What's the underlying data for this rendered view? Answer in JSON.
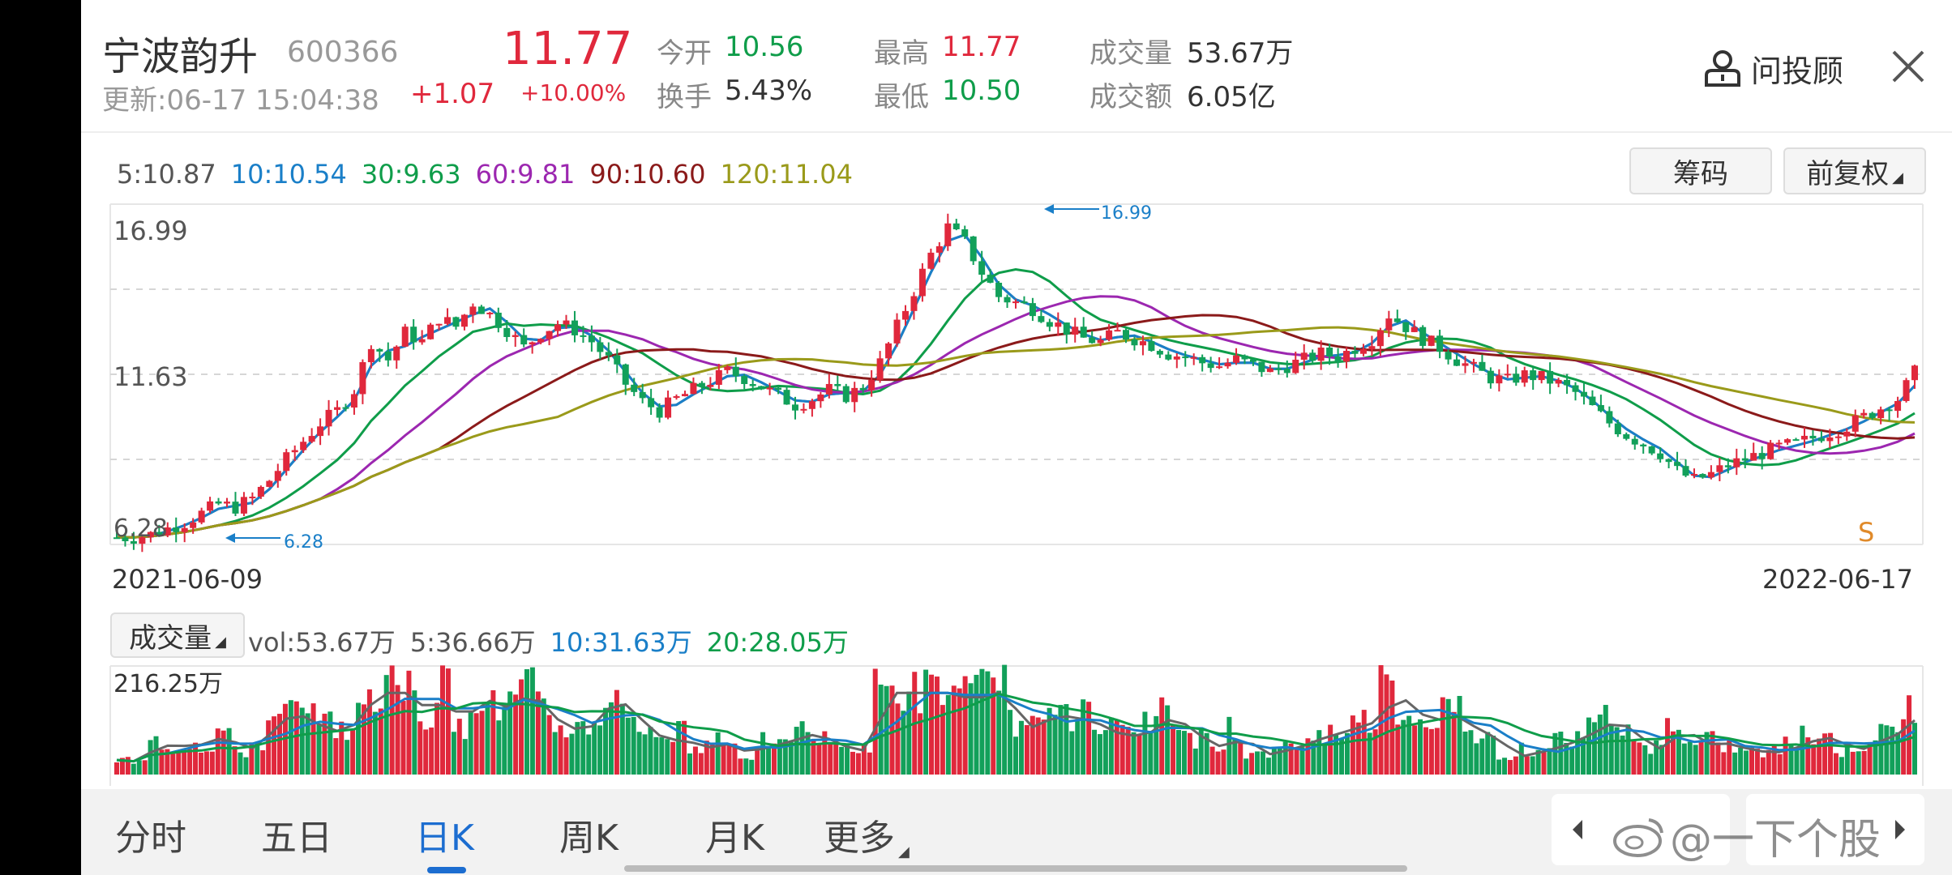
{
  "stock": {
    "name": "宁波韵升",
    "code": "600366",
    "update": "更新:06-17 15:04:38",
    "price": "11.77",
    "change": "+1.07",
    "change_pct": "+10.00%"
  },
  "quote": {
    "open_label": "今开",
    "open": "10.56",
    "turnover_label": "换手",
    "turnover": "5.43%",
    "high_label": "最高",
    "high": "11.77",
    "low_label": "最低",
    "low": "10.50",
    "volume_label": "成交量",
    "volume": "53.67万",
    "amount_label": "成交额",
    "amount": "6.05亿"
  },
  "advisor_label": "问投顾",
  "ma_legend": [
    {
      "text": "5:10.87",
      "color": "#555555"
    },
    {
      "text": "10:10.54",
      "color": "#1a7fc8"
    },
    {
      "text": "30:9.63",
      "color": "#0f9d4a"
    },
    {
      "text": "60:9.81",
      "color": "#9c27b0"
    },
    {
      "text": "90:10.60",
      "color": "#8b1a1a"
    },
    {
      "text": "120:11.04",
      "color": "#9a9a1a"
    }
  ],
  "buttons": {
    "chips": "筹码",
    "adjust": "前复权"
  },
  "kline": {
    "y_top": "16.99",
    "y_mid": "11.63",
    "y_bottom": "6.28",
    "max_marker": "16.99",
    "min_marker": "6.28",
    "signal": "S",
    "date_start": "2021-06-09",
    "date_end": "2022-06-17"
  },
  "volume_panel": {
    "selector": "成交量",
    "vol": "vol:53.67万",
    "ma5": "5:36.66万",
    "ma10": "10:31.63万",
    "ma20": "20:28.05万",
    "max_label": "216.25万"
  },
  "tabs": [
    "分时",
    "五日",
    "日K",
    "周K",
    "月K",
    "更多"
  ],
  "watermark": "@一下个股",
  "chart_data": {
    "type": "candlestick",
    "x_start": "2021-06-09",
    "x_end": "2022-06-17",
    "ylim": [
      6.28,
      16.99
    ],
    "close": [
      6.3,
      6.3,
      6.4,
      6.6,
      6.8,
      7.1,
      7.4,
      7.3,
      7.6,
      8.2,
      8.9,
      9.5,
      10.1,
      10.5,
      11.2,
      12.8,
      12.2,
      13.1,
      12.8,
      13.6,
      13.3,
      14.1,
      13.7,
      13.2,
      12.6,
      13.1,
      13.4,
      13.2,
      12.8,
      12.2,
      11.4,
      10.8,
      10.5,
      10.9,
      11.2,
      11.5,
      11.8,
      11.6,
      11.3,
      11.0,
      10.7,
      10.9,
      11.2,
      11.0,
      11.3,
      12.1,
      13.3,
      14.5,
      15.7,
      16.6,
      16.1,
      15.1,
      14.3,
      14.1,
      13.9,
      13.5,
      13.2,
      12.9,
      12.8,
      13.1,
      12.9,
      12.7,
      12.4,
      12.3,
      12.1,
      12.0,
      12.2,
      12.0,
      11.8,
      12.0,
      12.2,
      12.4,
      12.3,
      12.6,
      12.9,
      13.7,
      13.3,
      12.9,
      12.6,
      12.2,
      11.9,
      11.6,
      11.5,
      11.7,
      11.6,
      11.4,
      11.1,
      10.6,
      10.1,
      9.7,
      9.4,
      9.1,
      8.5,
      8.2,
      8.4,
      8.7,
      8.9,
      9.1,
      9.3,
      9.4,
      9.6,
      9.8,
      10.0,
      10.3,
      10.6,
      10.9,
      11.77
    ],
    "moving_averages": [
      "MA5",
      "MA10",
      "MA30",
      "MA60",
      "MA90",
      "MA120"
    ],
    "volume_max": "216.25万"
  }
}
